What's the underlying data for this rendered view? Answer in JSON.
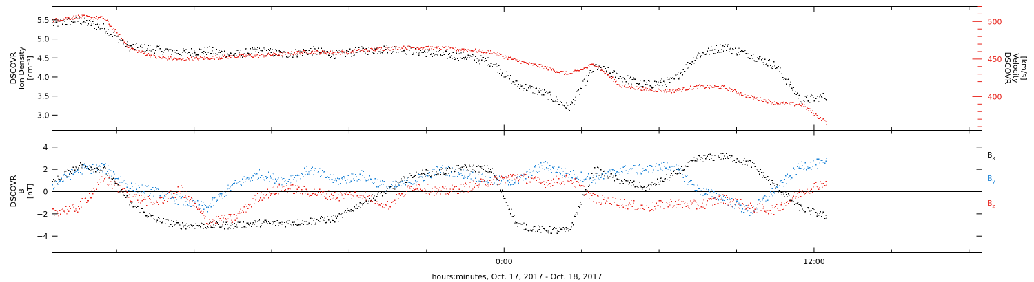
{
  "colors": {
    "black": "#000000",
    "red": "#e8231b",
    "blue": "#1c83d6"
  },
  "time_axis": {
    "xlabel": "hours:minutes, Oct. 17, 2017 - Oct. 18, 2017",
    "xlim_hours": [
      -17.5,
      18.5
    ],
    "major_ticks": [
      {
        "hours": 0,
        "label": "0:00"
      },
      {
        "hours": 12,
        "label": "12:00"
      }
    ],
    "minor_tick_hours": [
      -15,
      -12,
      -9,
      -6,
      -3,
      3,
      6,
      9,
      15,
      18
    ]
  },
  "chart_data": [
    {
      "type": "scatter",
      "ylabel_left": [
        "DSCOVR",
        "Ion Density",
        "[cm⁻³]"
      ],
      "ylabel_right": [
        "DSCOVR",
        "Velocity",
        "[km/s]"
      ],
      "ylim_left": [
        2.6,
        5.85
      ],
      "yticks_left": [
        3.0,
        3.5,
        4.0,
        4.5,
        5.0,
        5.5
      ],
      "ytick_labels_left": [
        "3.0",
        "3.5",
        "4.0",
        "4.5",
        "5.0",
        "5.5"
      ],
      "ylim_right": [
        355,
        520
      ],
      "yticks_right": [
        400,
        450,
        500
      ],
      "ytick_labels_right": [
        "400",
        "450",
        "500"
      ],
      "series": [
        {
          "axis": "left",
          "color": "black",
          "x": [
            -17.5,
            -16.5,
            -15.5,
            -14.5,
            -13.5,
            -12.5,
            -11.5,
            -10.5,
            -9.5,
            -8.5,
            -7.5,
            -6.5,
            -5.5,
            -4.5,
            -3.5,
            -2.5,
            -1.5,
            -0.5,
            0.5,
            1.5,
            2.5,
            3.5,
            4.5,
            5.5,
            6.5,
            7.5,
            8.5,
            9.5,
            10.5,
            11.5,
            12.5
          ],
          "y": [
            5.4,
            5.5,
            5.3,
            4.8,
            4.75,
            4.65,
            4.7,
            4.6,
            4.7,
            4.6,
            4.7,
            4.6,
            4.7,
            4.75,
            4.7,
            4.6,
            4.55,
            4.4,
            3.8,
            3.6,
            3.2,
            4.3,
            4.0,
            3.8,
            3.9,
            4.6,
            4.8,
            4.6,
            4.3,
            3.4,
            3.5
          ]
        },
        {
          "axis": "right",
          "color": "red",
          "x": [
            -17.5,
            -16.5,
            -15.5,
            -14.5,
            -13.5,
            -12.5,
            -11.5,
            -10.5,
            -9.5,
            -8.5,
            -7.5,
            -6.5,
            -5.5,
            -4.5,
            -3.5,
            -2.5,
            -1.5,
            -0.5,
            0.5,
            1.5,
            2.5,
            3.5,
            4.5,
            5.5,
            6.5,
            7.5,
            8.5,
            9.5,
            10.5,
            11.5,
            12.5
          ],
          "y": [
            502,
            507,
            505,
            465,
            453,
            450,
            452,
            454,
            455,
            458,
            460,
            459,
            462,
            465,
            466,
            465,
            463,
            460,
            448,
            440,
            430,
            444,
            415,
            410,
            408,
            414,
            413,
            400,
            392,
            390,
            365
          ]
        }
      ]
    },
    {
      "type": "scatter",
      "ylabel_left": [
        "DSCOVR",
        "B",
        "[nT]"
      ],
      "ylim": [
        -5.5,
        5.5
      ],
      "yticks": [
        -4,
        -2,
        0,
        2,
        4
      ],
      "ytick_labels": [
        "−4",
        "−2",
        "0",
        "2",
        "4"
      ],
      "legend_position": "right",
      "series": [
        {
          "name": "Bx",
          "color": "black",
          "x": [
            -17.5,
            -16.5,
            -15.5,
            -14.5,
            -13.5,
            -12.5,
            -11.5,
            -10.5,
            -9.5,
            -8.5,
            -7.5,
            -6.5,
            -5.5,
            -4.5,
            -3.5,
            -2.5,
            -1.5,
            -0.5,
            0.5,
            1.5,
            2.5,
            3.5,
            4.5,
            5.5,
            6.5,
            7.5,
            8.5,
            9.5,
            10.5,
            11.5,
            12.5
          ],
          "y": [
            0.8,
            2.4,
            2.0,
            -1.0,
            -2.5,
            -3.0,
            -3.0,
            -3.0,
            -2.8,
            -2.8,
            -2.6,
            -2.4,
            -1.0,
            0.2,
            1.6,
            1.8,
            2.2,
            2.0,
            -3.0,
            -3.4,
            -3.5,
            2.0,
            1.0,
            0.4,
            1.5,
            3.0,
            3.2,
            2.6,
            0.5,
            -1.5,
            -2.2
          ]
        },
        {
          "name": "By",
          "color": "blue",
          "x": [
            -17.5,
            -16.5,
            -15.5,
            -14.5,
            -13.5,
            -12.5,
            -11.5,
            -10.5,
            -9.5,
            -8.5,
            -7.5,
            -6.5,
            -5.5,
            -4.5,
            -3.5,
            -2.5,
            -1.5,
            -0.5,
            0.5,
            1.5,
            2.5,
            3.5,
            4.5,
            5.5,
            6.5,
            7.5,
            8.5,
            9.5,
            10.5,
            11.5,
            12.5
          ],
          "y": [
            0.6,
            2.0,
            2.2,
            0.5,
            0.0,
            -0.8,
            -1.4,
            0.6,
            1.6,
            1.0,
            2.0,
            1.0,
            1.5,
            0.4,
            1.0,
            2.0,
            1.6,
            1.0,
            1.0,
            2.4,
            1.6,
            1.2,
            2.0,
            2.0,
            2.4,
            0.2,
            -0.6,
            -1.8,
            0.2,
            2.4,
            2.6
          ]
        },
        {
          "name": "Bz",
          "color": "red",
          "x": [
            -17.5,
            -16.5,
            -15.5,
            -14.5,
            -13.5,
            -12.5,
            -11.5,
            -10.5,
            -9.5,
            -8.5,
            -7.5,
            -6.5,
            -5.5,
            -4.5,
            -3.5,
            -2.5,
            -1.5,
            -0.5,
            0.5,
            1.5,
            2.5,
            3.5,
            4.5,
            5.5,
            6.5,
            7.5,
            8.5,
            9.5,
            10.5,
            11.5,
            12.5
          ],
          "y": [
            -1.8,
            -1.4,
            1.2,
            -0.4,
            -1.0,
            0.2,
            -2.6,
            -2.4,
            -0.4,
            0.4,
            0.0,
            -0.4,
            -0.2,
            -1.2,
            0.6,
            0.0,
            0.4,
            1.0,
            1.4,
            0.8,
            1.2,
            -0.6,
            -1.0,
            -1.4,
            -1.0,
            -1.2,
            -0.6,
            -1.4,
            -1.6,
            0.0,
            1.0
          ]
        }
      ]
    }
  ]
}
